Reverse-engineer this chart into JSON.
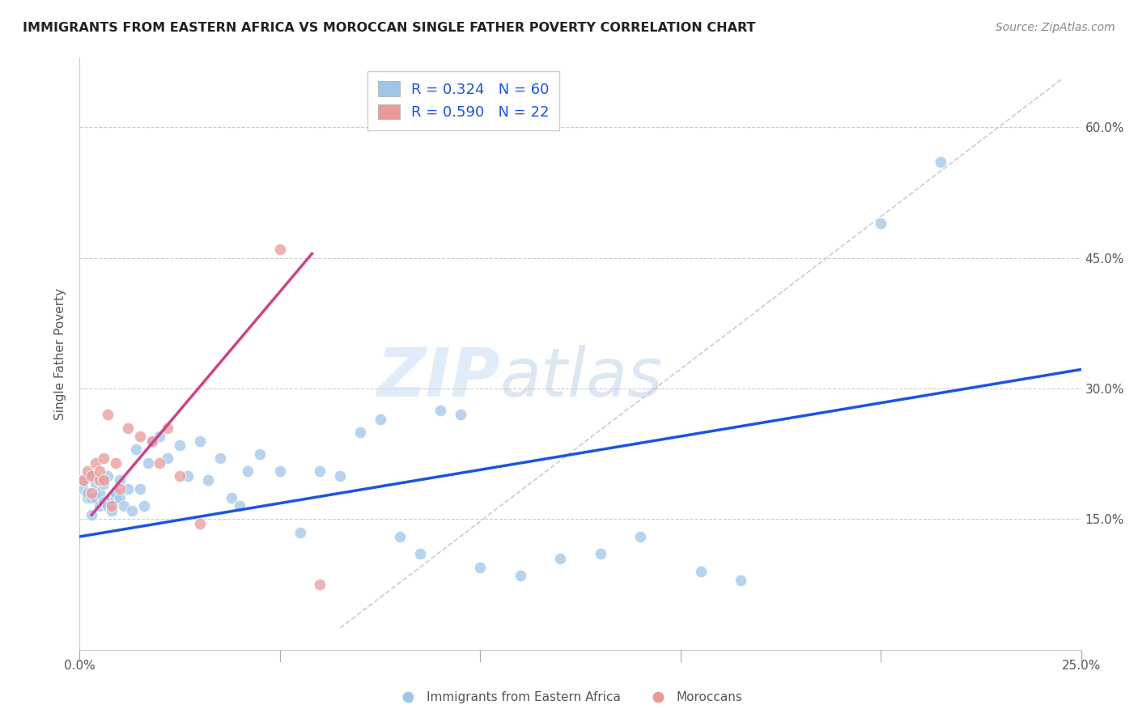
{
  "title": "IMMIGRANTS FROM EASTERN AFRICA VS MOROCCAN SINGLE FATHER POVERTY CORRELATION CHART",
  "source": "Source: ZipAtlas.com",
  "ylabel": "Single Father Poverty",
  "xlim": [
    0.0,
    0.25
  ],
  "ylim": [
    0.0,
    0.68
  ],
  "xticks": [
    0.0,
    0.05,
    0.1,
    0.15,
    0.2,
    0.25
  ],
  "xticklabels": [
    "0.0%",
    "",
    "",
    "",
    "",
    "25.0%"
  ],
  "yticks": [
    0.0,
    0.15,
    0.3,
    0.45,
    0.6
  ],
  "yticklabels": [
    "",
    "15.0%",
    "30.0%",
    "45.0%",
    "60.0%"
  ],
  "legend_R1": "R = 0.324",
  "legend_N1": "N = 60",
  "legend_R2": "R = 0.590",
  "legend_N2": "N = 22",
  "blue_color": "#9fc5e8",
  "pink_color": "#ea9999",
  "blue_line_color": "#1a56db",
  "pink_line_color": "#cc4488",
  "diag_line_color": "#cccccc",
  "watermark_zip": "ZIP",
  "watermark_atlas": "atlas",
  "blue_scatter_x": [
    0.001,
    0.001,
    0.002,
    0.002,
    0.003,
    0.003,
    0.003,
    0.004,
    0.004,
    0.005,
    0.005,
    0.005,
    0.006,
    0.006,
    0.007,
    0.007,
    0.008,
    0.008,
    0.009,
    0.009,
    0.01,
    0.01,
    0.011,
    0.012,
    0.013,
    0.014,
    0.015,
    0.016,
    0.017,
    0.018,
    0.02,
    0.022,
    0.025,
    0.027,
    0.03,
    0.032,
    0.035,
    0.038,
    0.04,
    0.042,
    0.045,
    0.05,
    0.055,
    0.06,
    0.065,
    0.07,
    0.075,
    0.08,
    0.085,
    0.09,
    0.095,
    0.1,
    0.11,
    0.12,
    0.13,
    0.14,
    0.155,
    0.165,
    0.2,
    0.215
  ],
  "blue_scatter_y": [
    0.195,
    0.185,
    0.175,
    0.18,
    0.2,
    0.175,
    0.155,
    0.175,
    0.19,
    0.165,
    0.18,
    0.195,
    0.17,
    0.19,
    0.165,
    0.2,
    0.175,
    0.16,
    0.175,
    0.18,
    0.175,
    0.195,
    0.165,
    0.185,
    0.16,
    0.23,
    0.185,
    0.165,
    0.215,
    0.24,
    0.245,
    0.22,
    0.235,
    0.2,
    0.24,
    0.195,
    0.22,
    0.175,
    0.165,
    0.205,
    0.225,
    0.205,
    0.135,
    0.205,
    0.2,
    0.25,
    0.265,
    0.13,
    0.11,
    0.275,
    0.27,
    0.095,
    0.085,
    0.105,
    0.11,
    0.13,
    0.09,
    0.08,
    0.49,
    0.56
  ],
  "pink_scatter_x": [
    0.001,
    0.002,
    0.003,
    0.003,
    0.004,
    0.005,
    0.005,
    0.006,
    0.006,
    0.007,
    0.008,
    0.009,
    0.01,
    0.012,
    0.015,
    0.018,
    0.02,
    0.022,
    0.025,
    0.03,
    0.05,
    0.06
  ],
  "pink_scatter_y": [
    0.195,
    0.205,
    0.2,
    0.18,
    0.215,
    0.195,
    0.205,
    0.22,
    0.195,
    0.27,
    0.165,
    0.215,
    0.185,
    0.255,
    0.245,
    0.24,
    0.215,
    0.255,
    0.2,
    0.145,
    0.46,
    0.075
  ],
  "blue_line_x0": 0.0,
  "blue_line_y0": 0.13,
  "blue_line_x1": 0.25,
  "blue_line_y1": 0.322,
  "pink_line_x0": 0.003,
  "pink_line_y0": 0.155,
  "pink_line_x1": 0.058,
  "pink_line_y1": 0.455,
  "diag_line_x0": 0.065,
  "diag_line_y0": 0.025,
  "diag_line_x1": 0.245,
  "diag_line_y1": 0.655
}
